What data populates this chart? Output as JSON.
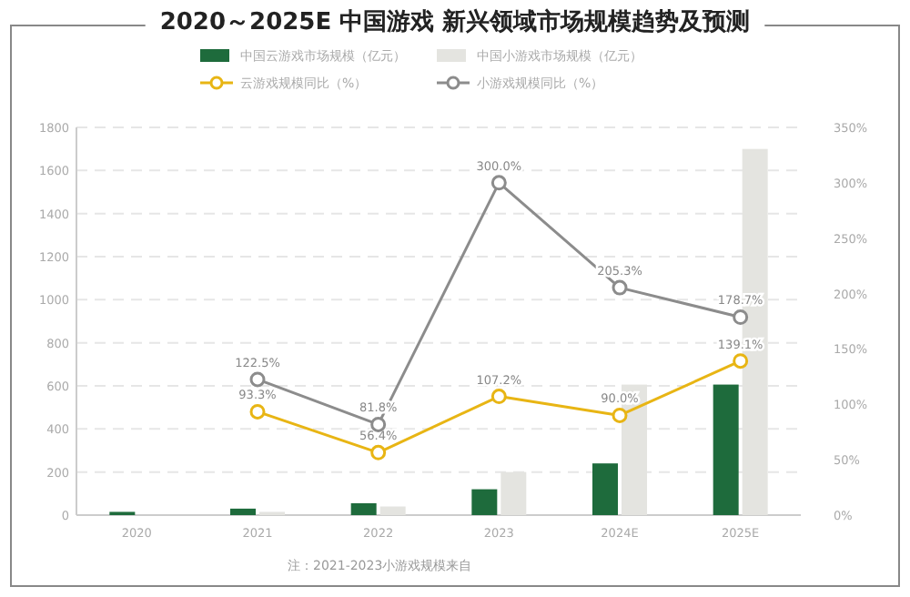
{
  "chart_data": {
    "type": "bar",
    "title": "2020～2025E 中国游戏 新兴领域市场规模趋势及预测",
    "categories": [
      "2020",
      "2021",
      "2022",
      "2023",
      "2024E",
      "2025E"
    ],
    "series": [
      {
        "name": "中国云游戏市场规模（亿元）",
        "color": "#1e6b3c",
        "values": [
          15,
          30,
          55,
          120,
          240,
          606
        ]
      },
      {
        "name": "中国小游戏市场规模（亿元）",
        "color": "#e4e4e0",
        "values": [
          null,
          15,
          40,
          200,
          606,
          1700
        ]
      },
      {
        "name": "云游戏规模同比（%）",
        "type": "line",
        "axis": "y2",
        "color": "#e8b514",
        "values": [
          null,
          93.3,
          56.4,
          107.2,
          90.0,
          139.1
        ],
        "value_labels": [
          null,
          "93.3%",
          "56.4%",
          "107.2%",
          "90.0%",
          "139.1%"
        ]
      },
      {
        "name": "小游戏规模同比（%）",
        "type": "line",
        "axis": "y2",
        "color": "#8c8c8c",
        "values": [
          null,
          122.5,
          81.8,
          300.0,
          205.3,
          178.7
        ],
        "value_labels": [
          null,
          "122.5%",
          "81.8%",
          "300.0%",
          "205.3%",
          "178.7%"
        ]
      }
    ],
    "ylim": [
      0,
      1800
    ],
    "yticks": [
      0,
      200,
      400,
      600,
      800,
      1000,
      1200,
      1400,
      1600,
      1800
    ],
    "y2lim": [
      0,
      350
    ],
    "y2ticks": [
      {
        "value": 0,
        "label": "0%"
      },
      {
        "value": 50,
        "label": "50%"
      },
      {
        "value": 100,
        "label": "100%"
      },
      {
        "value": 150,
        "label": "150%"
      },
      {
        "value": 200,
        "label": "200%"
      },
      {
        "value": 250,
        "label": "250%"
      },
      {
        "value": 300,
        "label": "300%"
      },
      {
        "value": 350,
        "label": "350%"
      }
    ],
    "grid": "y",
    "legend": "top",
    "marker": "circle",
    "annotations": [
      "注：2021-2023小游戏规模来自"
    ]
  }
}
